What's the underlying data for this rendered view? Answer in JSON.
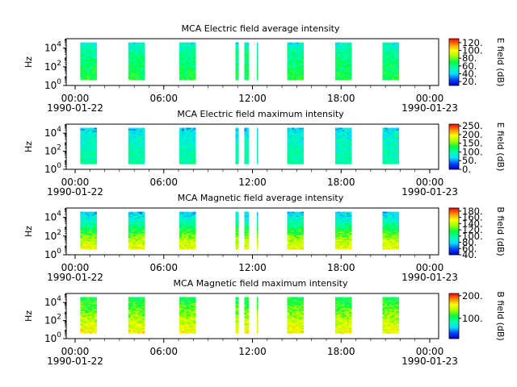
{
  "chart_data": [
    {
      "type": "heatmap",
      "title": "MCA  Electric field average intensity",
      "ylabel": "Hz",
      "y_scale": "log",
      "y_ticks": [
        {
          "exp": "0",
          "v": 1
        },
        {
          "exp": "2",
          "v": 100
        },
        {
          "exp": "4",
          "v": 10000
        }
      ],
      "ylim": [
        1,
        100000
      ],
      "x_ticks": [
        {
          "time": "00:00",
          "date": "1990-01-22",
          "hours": 0
        },
        {
          "time": "06:00",
          "date": "",
          "hours": 6
        },
        {
          "time": "12:00",
          "date": "",
          "hours": 12
        },
        {
          "time": "18:00",
          "date": "",
          "hours": 18
        },
        {
          "time": "00:00",
          "date": "1990-01-23",
          "hours": 24
        }
      ],
      "xlim_hours": [
        -0.6,
        24.6
      ],
      "colorbar": {
        "label": "E field (dB)",
        "min": 10,
        "max": 130,
        "ticks": [
          "120.",
          "100.",
          "80.",
          "60.",
          "40.",
          "20."
        ],
        "tick_values": [
          120,
          100,
          80,
          60,
          40,
          20
        ]
      },
      "segments_hours": [
        [
          0.35,
          1.45
        ],
        [
          3.6,
          4.7
        ],
        [
          7.05,
          8.15
        ],
        [
          10.85,
          11.05
        ],
        [
          11.45,
          11.75
        ],
        [
          12.3,
          12.35
        ],
        [
          14.35,
          15.45
        ],
        [
          17.6,
          18.7
        ],
        [
          20.8,
          21.9
        ]
      ],
      "band_hz": [
        4,
        40000
      ],
      "intensity_profile_db": [
        [
          4,
          70
        ],
        [
          100,
          65
        ],
        [
          10000,
          55
        ],
        [
          40000,
          45
        ]
      ]
    },
    {
      "type": "heatmap",
      "title": "MCA  Electric field maximum intensity",
      "ylabel": "Hz",
      "y_scale": "log",
      "y_ticks": [
        {
          "exp": "0",
          "v": 1
        },
        {
          "exp": "2",
          "v": 100
        },
        {
          "exp": "4",
          "v": 10000
        }
      ],
      "ylim": [
        1,
        100000
      ],
      "x_ticks": [
        {
          "time": "00:00",
          "date": "1990-01-22",
          "hours": 0
        },
        {
          "time": "06:00",
          "date": "",
          "hours": 6
        },
        {
          "time": "12:00",
          "date": "",
          "hours": 12
        },
        {
          "time": "18:00",
          "date": "",
          "hours": 18
        },
        {
          "time": "00:00",
          "date": "1990-01-23",
          "hours": 24
        }
      ],
      "xlim_hours": [
        -0.6,
        24.6
      ],
      "colorbar": {
        "label": "E field (dB)",
        "min": 0,
        "max": 260,
        "ticks": [
          "250.",
          "200.",
          "150.",
          "100.",
          "50.",
          "0."
        ],
        "tick_values": [
          250,
          200,
          150,
          100,
          50,
          0
        ]
      },
      "segments_hours": [
        [
          0.35,
          1.45
        ],
        [
          3.6,
          4.7
        ],
        [
          7.05,
          8.15
        ],
        [
          10.85,
          11.05
        ],
        [
          11.45,
          11.75
        ],
        [
          12.3,
          12.35
        ],
        [
          14.35,
          15.45
        ],
        [
          17.6,
          18.7
        ],
        [
          20.8,
          21.9
        ]
      ],
      "band_hz": [
        4,
        40000
      ],
      "intensity_profile_db": [
        [
          4,
          100
        ],
        [
          100,
          95
        ],
        [
          10000,
          80
        ],
        [
          40000,
          60
        ]
      ]
    },
    {
      "type": "heatmap",
      "title": "MCA  Magnetic field average intensity",
      "ylabel": "Hz",
      "y_scale": "log",
      "y_ticks": [
        {
          "exp": "0",
          "v": 1
        },
        {
          "exp": "2",
          "v": 100
        },
        {
          "exp": "4",
          "v": 10000
        }
      ],
      "ylim": [
        1,
        100000
      ],
      "x_ticks": [
        {
          "time": "00:00",
          "date": "1990-01-22",
          "hours": 0
        },
        {
          "time": "06:00",
          "date": "",
          "hours": 6
        },
        {
          "time": "12:00",
          "date": "",
          "hours": 12
        },
        {
          "time": "18:00",
          "date": "",
          "hours": 18
        },
        {
          "time": "00:00",
          "date": "1990-01-23",
          "hours": 24
        }
      ],
      "xlim_hours": [
        -0.6,
        24.6
      ],
      "colorbar": {
        "label": "B field (dB)",
        "min": 40,
        "max": 190,
        "ticks": [
          "180.",
          "160.",
          "140.",
          "120.",
          "100.",
          "80.",
          "60.",
          "40."
        ],
        "tick_values": [
          180,
          160,
          140,
          120,
          100,
          80,
          60,
          40
        ]
      },
      "segments_hours": [
        [
          0.35,
          1.45
        ],
        [
          3.6,
          4.7
        ],
        [
          7.05,
          8.15
        ],
        [
          10.85,
          11.05
        ],
        [
          11.45,
          11.75
        ],
        [
          12.3,
          12.35
        ],
        [
          14.35,
          15.45
        ],
        [
          17.6,
          18.7
        ],
        [
          20.8,
          21.9
        ]
      ],
      "band_hz": [
        4,
        40000
      ],
      "intensity_profile_db": [
        [
          4,
          150
        ],
        [
          30,
          140
        ],
        [
          300,
          120
        ],
        [
          3000,
          95
        ],
        [
          40000,
          75
        ]
      ]
    },
    {
      "type": "heatmap",
      "title": "MCA  Magnetic field maximum intensity",
      "ylabel": "Hz",
      "y_scale": "log",
      "y_ticks": [
        {
          "exp": "0",
          "v": 1
        },
        {
          "exp": "2",
          "v": 100
        },
        {
          "exp": "4",
          "v": 10000
        }
      ],
      "ylim": [
        1,
        100000
      ],
      "x_ticks": [
        {
          "time": "00:00",
          "date": "1990-01-22",
          "hours": 0
        },
        {
          "time": "06:00",
          "date": "",
          "hours": 6
        },
        {
          "time": "12:00",
          "date": "",
          "hours": 12
        },
        {
          "time": "18:00",
          "date": "",
          "hours": 18
        },
        {
          "time": "00:00",
          "date": "1990-01-23",
          "hours": 24
        }
      ],
      "xlim_hours": [
        -0.6,
        24.6
      ],
      "colorbar": {
        "label": "B field (dB)",
        "min": 10,
        "max": 210,
        "ticks": [
          "200.",
          "100."
        ],
        "tick_values": [
          200,
          100
        ]
      },
      "segments_hours": [
        [
          0.35,
          1.45
        ],
        [
          3.6,
          4.7
        ],
        [
          7.05,
          8.15
        ],
        [
          10.85,
          11.05
        ],
        [
          11.45,
          11.75
        ],
        [
          12.3,
          12.35
        ],
        [
          14.35,
          15.45
        ],
        [
          17.6,
          18.7
        ],
        [
          20.8,
          21.9
        ]
      ],
      "band_hz": [
        4,
        40000
      ],
      "intensity_profile_db": [
        [
          4,
          160
        ],
        [
          30,
          150
        ],
        [
          300,
          135
        ],
        [
          3000,
          120
        ],
        [
          40000,
          105
        ]
      ]
    }
  ]
}
